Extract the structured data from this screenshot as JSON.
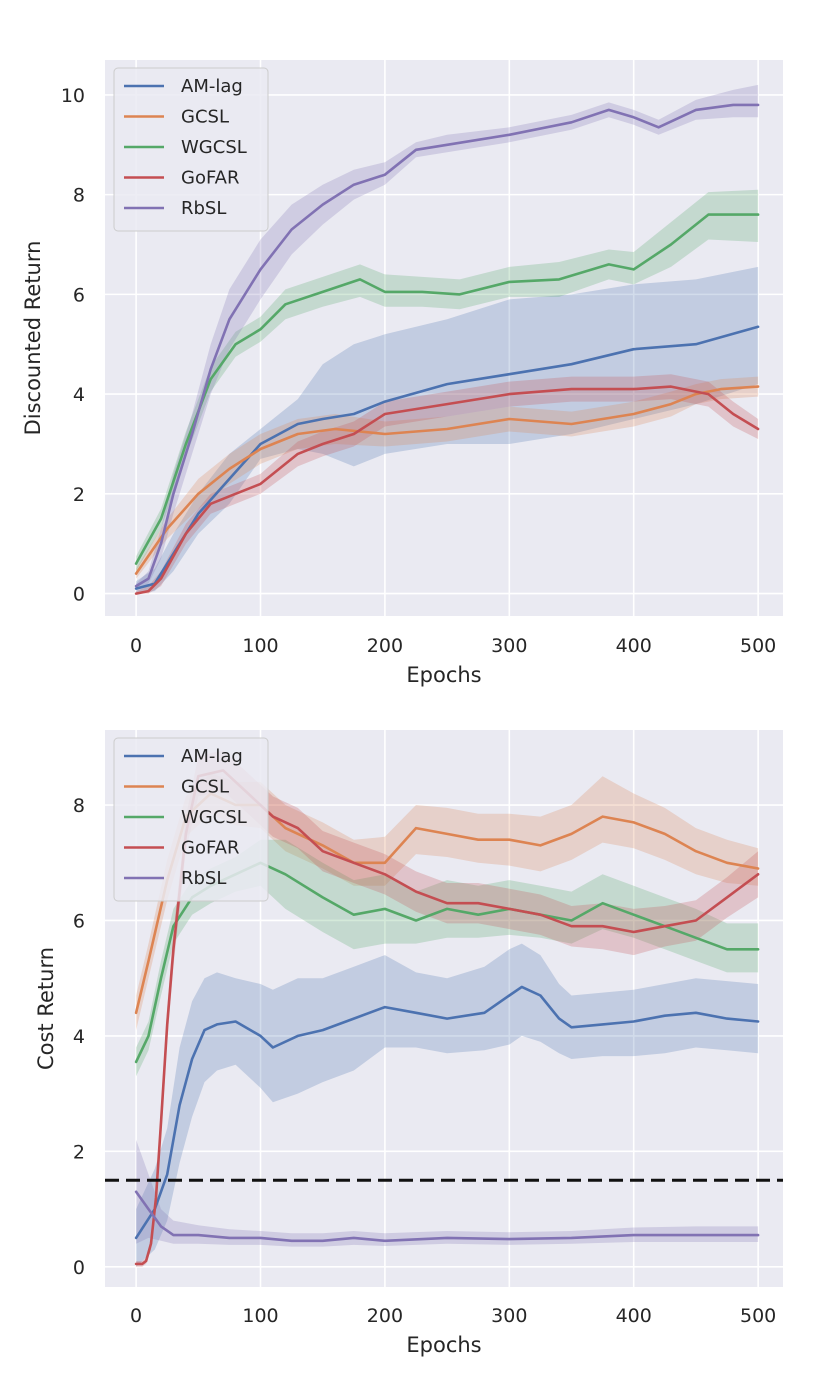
{
  "chart_data": [
    {
      "type": "line",
      "title": "",
      "xlabel": "Epochs",
      "ylabel": "Discounted Return",
      "xlim": [
        -25,
        520
      ],
      "ylim": [
        -0.45,
        10.7
      ],
      "xticks": [
        0,
        100,
        200,
        300,
        400,
        500
      ],
      "yticks": [
        0,
        2,
        4,
        6,
        8,
        10
      ],
      "grid": true,
      "legend_position": "top-left",
      "colors": {
        "AM-lag": "#4c72b0",
        "GCSL": "#dd8452",
        "WGCSL": "#55a868",
        "GoFAR": "#c44e52",
        "RbSL": "#8172b3"
      },
      "series": [
        {
          "name": "AM-lag",
          "x": [
            0,
            15,
            30,
            50,
            75,
            100,
            130,
            150,
            175,
            200,
            250,
            300,
            350,
            400,
            450,
            500
          ],
          "values": [
            0.1,
            0.2,
            0.8,
            1.6,
            2.3,
            3.0,
            3.4,
            3.5,
            3.6,
            3.85,
            4.2,
            4.4,
            4.6,
            4.9,
            5.0,
            5.35
          ],
          "lower": [
            0.0,
            0.05,
            0.45,
            1.2,
            1.8,
            2.7,
            2.9,
            2.8,
            2.55,
            2.8,
            3.0,
            3.0,
            3.2,
            3.5,
            3.8,
            4.2
          ],
          "upper": [
            0.25,
            0.5,
            1.2,
            2.0,
            2.8,
            3.3,
            3.9,
            4.6,
            5.0,
            5.2,
            5.5,
            5.9,
            6.0,
            6.2,
            6.3,
            6.55
          ]
        },
        {
          "name": "GCSL",
          "x": [
            0,
            25,
            50,
            75,
            100,
            130,
            160,
            200,
            250,
            300,
            350,
            400,
            430,
            450,
            470,
            500
          ],
          "values": [
            0.4,
            1.3,
            2.0,
            2.5,
            2.9,
            3.2,
            3.3,
            3.2,
            3.3,
            3.5,
            3.4,
            3.6,
            3.8,
            4.0,
            4.1,
            4.15
          ],
          "lower": [
            0.3,
            1.1,
            1.7,
            2.2,
            2.6,
            2.9,
            3.0,
            2.95,
            3.05,
            3.25,
            3.15,
            3.35,
            3.55,
            3.8,
            3.9,
            3.95
          ],
          "upper": [
            0.5,
            1.5,
            2.3,
            2.8,
            3.2,
            3.5,
            3.6,
            3.45,
            3.55,
            3.75,
            3.65,
            3.85,
            4.05,
            4.2,
            4.3,
            4.35
          ]
        },
        {
          "name": "GoFAR",
          "x": [
            0,
            10,
            20,
            40,
            60,
            80,
            100,
            130,
            150,
            175,
            200,
            250,
            300,
            350,
            400,
            430,
            460,
            480,
            500
          ],
          "values": [
            0.0,
            0.05,
            0.3,
            1.2,
            1.8,
            2.0,
            2.2,
            2.8,
            3.0,
            3.2,
            3.6,
            3.8,
            4.0,
            4.1,
            4.1,
            4.15,
            4.0,
            3.6,
            3.3
          ],
          "lower": [
            0.0,
            0.0,
            0.15,
            1.0,
            1.6,
            1.8,
            2.0,
            2.55,
            2.75,
            2.95,
            3.35,
            3.55,
            3.75,
            3.85,
            3.85,
            3.9,
            3.75,
            3.35,
            3.1
          ],
          "upper": [
            0.05,
            0.15,
            0.45,
            1.4,
            2.0,
            2.2,
            2.4,
            3.05,
            3.25,
            3.45,
            3.85,
            4.05,
            4.25,
            4.35,
            4.35,
            4.4,
            4.25,
            3.85,
            3.5
          ]
        },
        {
          "name": "WGCSL",
          "x": [
            0,
            20,
            40,
            60,
            80,
            100,
            120,
            150,
            180,
            200,
            230,
            260,
            300,
            340,
            380,
            400,
            430,
            460,
            500
          ],
          "values": [
            0.6,
            1.5,
            3.0,
            4.3,
            5.0,
            5.3,
            5.8,
            6.05,
            6.3,
            6.05,
            6.05,
            6.0,
            6.25,
            6.3,
            6.6,
            6.5,
            7.0,
            7.6,
            7.6
          ],
          "lower": [
            0.45,
            1.3,
            2.75,
            4.05,
            4.75,
            5.05,
            5.5,
            5.75,
            5.95,
            5.75,
            5.75,
            5.7,
            5.95,
            5.95,
            6.3,
            6.2,
            6.55,
            7.1,
            7.05
          ],
          "upper": [
            0.75,
            1.7,
            3.25,
            4.55,
            5.25,
            5.55,
            6.1,
            6.35,
            6.6,
            6.4,
            6.35,
            6.3,
            6.55,
            6.65,
            6.9,
            6.85,
            7.45,
            8.05,
            8.1
          ]
        },
        {
          "name": "RbSL",
          "x": [
            0,
            10,
            20,
            30,
            45,
            60,
            75,
            100,
            125,
            150,
            175,
            200,
            225,
            250,
            300,
            350,
            380,
            400,
            420,
            450,
            480,
            500
          ],
          "values": [
            0.15,
            0.3,
            1.0,
            2.0,
            3.2,
            4.5,
            5.5,
            6.5,
            7.3,
            7.8,
            8.2,
            8.4,
            8.9,
            9.0,
            9.2,
            9.45,
            9.7,
            9.55,
            9.35,
            9.7,
            9.8,
            9.8
          ],
          "lower": [
            0.1,
            0.2,
            0.7,
            1.6,
            2.8,
            4.0,
            4.9,
            5.9,
            6.8,
            7.4,
            7.9,
            8.2,
            8.75,
            8.85,
            9.05,
            9.3,
            9.55,
            9.4,
            9.2,
            9.5,
            9.55,
            9.55
          ],
          "upper": [
            0.2,
            0.45,
            1.3,
            2.4,
            3.6,
            5.0,
            6.1,
            7.1,
            7.8,
            8.2,
            8.5,
            8.65,
            9.05,
            9.2,
            9.35,
            9.6,
            9.85,
            9.7,
            9.5,
            9.9,
            10.1,
            10.2
          ]
        }
      ]
    },
    {
      "type": "line",
      "title": "",
      "xlabel": "Epochs",
      "ylabel": "Cost Return",
      "xlim": [
        -25,
        520
      ],
      "ylim": [
        -0.35,
        9.3
      ],
      "xticks": [
        0,
        100,
        200,
        300,
        400,
        500
      ],
      "yticks": [
        0,
        2,
        4,
        6,
        8
      ],
      "grid": true,
      "legend_position": "top-left",
      "threshold": 1.5,
      "colors": {
        "AM-lag": "#4c72b0",
        "GCSL": "#dd8452",
        "WGCSL": "#55a868",
        "GoFAR": "#c44e52",
        "RbSL": "#8172b3"
      },
      "series": [
        {
          "name": "AM-lag",
          "x": [
            0,
            15,
            25,
            35,
            45,
            55,
            65,
            80,
            100,
            110,
            130,
            150,
            175,
            200,
            225,
            250,
            280,
            300,
            310,
            325,
            340,
            350,
            375,
            400,
            425,
            450,
            475,
            500
          ],
          "values": [
            0.5,
            1.0,
            1.6,
            2.8,
            3.6,
            4.1,
            4.2,
            4.25,
            4.0,
            3.8,
            4.0,
            4.1,
            4.3,
            4.5,
            4.4,
            4.3,
            4.4,
            4.7,
            4.85,
            4.7,
            4.3,
            4.15,
            4.2,
            4.25,
            4.35,
            4.4,
            4.3,
            4.25
          ],
          "lower": [
            0.0,
            0.3,
            0.8,
            1.8,
            2.6,
            3.2,
            3.4,
            3.5,
            3.1,
            2.85,
            3.0,
            3.2,
            3.4,
            3.8,
            3.8,
            3.7,
            3.75,
            3.85,
            4.0,
            3.9,
            3.7,
            3.6,
            3.65,
            3.65,
            3.7,
            3.8,
            3.75,
            3.7
          ],
          "upper": [
            1.0,
            1.7,
            2.4,
            3.8,
            4.6,
            5.0,
            5.1,
            5.0,
            4.9,
            4.8,
            5.0,
            5.0,
            5.2,
            5.4,
            5.1,
            5.0,
            5.2,
            5.5,
            5.6,
            5.4,
            4.9,
            4.7,
            4.75,
            4.8,
            4.9,
            5.0,
            4.95,
            4.9
          ]
        },
        {
          "name": "GCSL",
          "x": [
            0,
            10,
            25,
            40,
            60,
            80,
            100,
            120,
            150,
            175,
            200,
            225,
            250,
            275,
            300,
            325,
            350,
            375,
            400,
            425,
            450,
            475,
            500
          ],
          "values": [
            4.4,
            5.3,
            6.7,
            7.8,
            8.2,
            8.0,
            8.0,
            7.6,
            7.3,
            7.0,
            7.0,
            7.6,
            7.5,
            7.4,
            7.4,
            7.3,
            7.5,
            7.8,
            7.7,
            7.5,
            7.2,
            7.0,
            6.9
          ],
          "lower": [
            4.1,
            5.0,
            6.35,
            7.45,
            7.85,
            7.65,
            7.6,
            7.2,
            6.9,
            6.6,
            6.6,
            7.15,
            7.1,
            7.0,
            6.95,
            6.85,
            7.05,
            7.35,
            7.25,
            7.05,
            6.8,
            6.65,
            6.6
          ],
          "upper": [
            4.7,
            5.6,
            7.05,
            8.15,
            8.55,
            8.4,
            8.4,
            8.0,
            7.7,
            7.4,
            7.45,
            8.0,
            7.95,
            7.85,
            7.85,
            7.8,
            8.0,
            8.5,
            8.2,
            7.95,
            7.6,
            7.4,
            7.25
          ]
        },
        {
          "name": "WGCSL",
          "x": [
            0,
            10,
            20,
            30,
            45,
            60,
            80,
            100,
            120,
            150,
            175,
            200,
            225,
            250,
            275,
            300,
            325,
            350,
            375,
            400,
            425,
            450,
            475,
            500
          ],
          "values": [
            3.55,
            4.0,
            5.0,
            5.9,
            6.4,
            6.6,
            6.8,
            7.0,
            6.8,
            6.4,
            6.1,
            6.2,
            6.0,
            6.2,
            6.1,
            6.2,
            6.1,
            6.0,
            6.3,
            6.1,
            5.9,
            5.7,
            5.5,
            5.5
          ],
          "lower": [
            3.3,
            3.75,
            4.7,
            5.6,
            6.1,
            6.3,
            6.5,
            6.6,
            6.2,
            5.8,
            5.5,
            5.6,
            5.6,
            5.7,
            5.7,
            5.75,
            5.7,
            5.6,
            5.85,
            5.7,
            5.5,
            5.3,
            5.1,
            5.1
          ],
          "upper": [
            3.8,
            4.25,
            5.3,
            6.2,
            6.7,
            6.9,
            7.1,
            7.4,
            7.4,
            7.0,
            6.7,
            6.8,
            6.5,
            6.7,
            6.6,
            6.7,
            6.6,
            6.5,
            6.8,
            6.6,
            6.4,
            6.2,
            5.95,
            5.95
          ]
        },
        {
          "name": "GoFAR",
          "x": [
            0,
            5,
            8,
            12,
            16,
            20,
            25,
            30,
            35,
            40,
            50,
            70,
            90,
            110,
            130,
            150,
            175,
            200,
            225,
            250,
            275,
            300,
            325,
            350,
            375,
            400,
            425,
            450,
            475,
            500
          ],
          "values": [
            0.05,
            0.05,
            0.1,
            0.4,
            1.2,
            2.5,
            4.2,
            5.5,
            6.5,
            7.5,
            8.5,
            8.6,
            8.2,
            7.8,
            7.6,
            7.2,
            7.0,
            6.8,
            6.5,
            6.3,
            6.3,
            6.2,
            6.1,
            5.9,
            5.9,
            5.8,
            5.9,
            6.0,
            6.4,
            6.8
          ],
          "lower": [
            0.0,
            0.0,
            0.05,
            0.3,
            1.0,
            2.2,
            3.9,
            5.2,
            6.2,
            7.2,
            8.15,
            8.25,
            7.85,
            7.45,
            7.25,
            6.85,
            6.65,
            6.45,
            6.15,
            5.95,
            5.95,
            5.85,
            5.75,
            5.55,
            5.5,
            5.4,
            5.55,
            5.65,
            6.05,
            6.4
          ],
          "upper": [
            0.1,
            0.1,
            0.15,
            0.5,
            1.4,
            2.8,
            4.5,
            5.8,
            6.8,
            7.8,
            8.85,
            8.95,
            8.55,
            8.15,
            7.95,
            7.55,
            7.35,
            7.15,
            6.85,
            6.65,
            6.65,
            6.55,
            6.45,
            6.25,
            6.3,
            6.2,
            6.25,
            6.35,
            6.75,
            7.2
          ]
        },
        {
          "name": "RbSL",
          "x": [
            0,
            10,
            20,
            30,
            50,
            75,
            100,
            125,
            150,
            175,
            200,
            250,
            300,
            350,
            400,
            450,
            500
          ],
          "values": [
            1.3,
            1.0,
            0.7,
            0.55,
            0.55,
            0.5,
            0.5,
            0.45,
            0.45,
            0.5,
            0.45,
            0.5,
            0.48,
            0.5,
            0.55,
            0.55,
            0.55
          ],
          "lower": [
            0.4,
            0.5,
            0.45,
            0.4,
            0.4,
            0.38,
            0.38,
            0.35,
            0.35,
            0.38,
            0.36,
            0.4,
            0.38,
            0.4,
            0.43,
            0.43,
            0.43
          ],
          "upper": [
            2.2,
            1.6,
            1.0,
            0.8,
            0.72,
            0.65,
            0.62,
            0.58,
            0.58,
            0.62,
            0.58,
            0.62,
            0.6,
            0.62,
            0.68,
            0.7,
            0.7
          ]
        }
      ]
    }
  ]
}
